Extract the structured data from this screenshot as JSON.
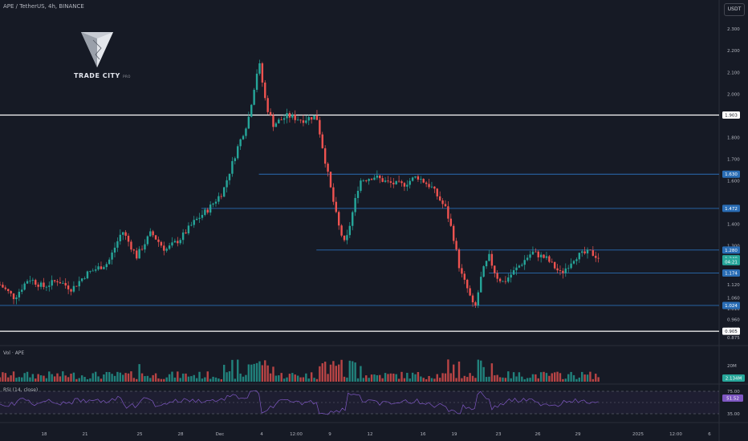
{
  "header": {
    "symbol_title": "APE / TetherUS, 4h, BINANCE",
    "currency": "USDT"
  },
  "logo": {
    "text": "TRADE CITY",
    "sub": "PRO"
  },
  "volume": {
    "label": "Vol · APE",
    "axis_label": "20M",
    "last_badge": "2.134M",
    "badge_color": "#26a69a"
  },
  "rsi": {
    "label": "RSI (14, close)",
    "ticks": [
      "75.00",
      "35.00"
    ],
    "value": "51.52",
    "badge_color": "#7e57c2"
  },
  "price_badges": [
    {
      "text": "1.903",
      "price": 1.903,
      "style": "white"
    },
    {
      "text": "1.630",
      "price": 1.63,
      "style": "blue"
    },
    {
      "text": "1.472",
      "price": 1.472,
      "style": "blue"
    },
    {
      "text": "1.280",
      "price": 1.28,
      "style": "blue"
    },
    {
      "text": "1.240",
      "price": 1.24,
      "style": "green"
    },
    {
      "text": "04:21",
      "price": 1.226,
      "style": "green"
    },
    {
      "text": "1.174",
      "price": 1.174,
      "style": "blue"
    },
    {
      "text": "1.024",
      "price": 1.024,
      "style": "blue"
    },
    {
      "text": "0.905",
      "price": 0.905,
      "style": "white"
    }
  ],
  "chart_data": {
    "type": "candlestick",
    "symbol": "APE / TetherUS",
    "timeframe": "4h",
    "exchange": "BINANCE",
    "y_ticks": [
      "2.300",
      "2.200",
      "2.100",
      "2.000",
      "1.800",
      "1.700",
      "1.600",
      "1.400",
      "1.300",
      "1.120",
      "1.060",
      "1.010",
      "0.960",
      "0.915",
      "0.875"
    ],
    "x_ticks": [
      "18",
      "21",
      "25",
      "28",
      "Dec",
      "4",
      "12:00",
      "9",
      "12",
      "16",
      "19",
      "23",
      "26",
      "29",
      "2025",
      "12:00",
      "6"
    ],
    "ylim": [
      0.85,
      2.36
    ],
    "horizontal_lines": [
      {
        "price": 1.903,
        "color": "#ffffff",
        "x_start": 0.0
      },
      {
        "price": 1.63,
        "color": "#2a6db5",
        "x_start": 0.36
      },
      {
        "price": 1.472,
        "color": "#2a6db5",
        "x_start": 0.28
      },
      {
        "price": 1.28,
        "color": "#2a6db5",
        "x_start": 0.44
      },
      {
        "price": 1.174,
        "color": "#2a6db5",
        "x_start": 0.68
      },
      {
        "price": 1.024,
        "color": "#2a6db5",
        "x_start": 0.0
      },
      {
        "price": 0.905,
        "color": "#ffffff",
        "x_start": 0.0
      }
    ],
    "last_price": 1.24,
    "price_path": [
      [
        0.0,
        1.12
      ],
      [
        0.02,
        1.06
      ],
      [
        0.04,
        1.15
      ],
      [
        0.06,
        1.11
      ],
      [
        0.08,
        1.14
      ],
      [
        0.1,
        1.1
      ],
      [
        0.12,
        1.17
      ],
      [
        0.15,
        1.22
      ],
      [
        0.17,
        1.37
      ],
      [
        0.19,
        1.25
      ],
      [
        0.21,
        1.36
      ],
      [
        0.23,
        1.28
      ],
      [
        0.25,
        1.33
      ],
      [
        0.27,
        1.41
      ],
      [
        0.29,
        1.47
      ],
      [
        0.31,
        1.55
      ],
      [
        0.33,
        1.75
      ],
      [
        0.345,
        1.88
      ],
      [
        0.36,
        2.15
      ],
      [
        0.37,
        1.95
      ],
      [
        0.38,
        1.86
      ],
      [
        0.4,
        1.9
      ],
      [
        0.42,
        1.88
      ],
      [
        0.44,
        1.9
      ],
      [
        0.45,
        1.73
      ],
      [
        0.46,
        1.56
      ],
      [
        0.47,
        1.4
      ],
      [
        0.48,
        1.3
      ],
      [
        0.49,
        1.45
      ],
      [
        0.5,
        1.6
      ],
      [
        0.52,
        1.62
      ],
      [
        0.54,
        1.59
      ],
      [
        0.56,
        1.58
      ],
      [
        0.58,
        1.62
      ],
      [
        0.6,
        1.57
      ],
      [
        0.62,
        1.47
      ],
      [
        0.63,
        1.35
      ],
      [
        0.64,
        1.18
      ],
      [
        0.65,
        1.1
      ],
      [
        0.66,
        1.0
      ],
      [
        0.67,
        1.17
      ],
      [
        0.68,
        1.25
      ],
      [
        0.69,
        1.16
      ],
      [
        0.7,
        1.13
      ],
      [
        0.72,
        1.2
      ],
      [
        0.74,
        1.27
      ],
      [
        0.76,
        1.24
      ],
      [
        0.78,
        1.17
      ],
      [
        0.8,
        1.25
      ],
      [
        0.82,
        1.27
      ],
      [
        0.835,
        1.24
      ]
    ]
  }
}
